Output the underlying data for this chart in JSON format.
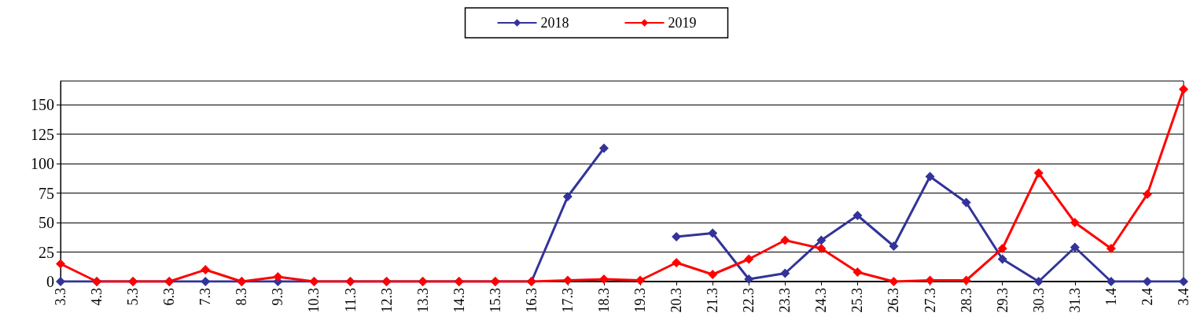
{
  "chart_data": {
    "type": "line",
    "categories": [
      "3.3",
      "4.3",
      "5.3",
      "6.3",
      "7.3",
      "8.3",
      "9.3",
      "10.3",
      "11.3",
      "12.3",
      "13.3",
      "14.3",
      "15.3",
      "16.3",
      "17.3",
      "18.3",
      "19.3",
      "20.3",
      "21.3",
      "22.3",
      "23.3",
      "24.3",
      "25.3",
      "26.3",
      "27.3",
      "28.3",
      "29.3",
      "30.3",
      "31.3",
      "1.4",
      "2.4",
      "3.4"
    ],
    "series": [
      {
        "name": "2018",
        "color": "#333399",
        "values": [
          0,
          0,
          0,
          0,
          0,
          0,
          0,
          0,
          0,
          0,
          0,
          0,
          0,
          0,
          72,
          113,
          null,
          38,
          41,
          2,
          7,
          35,
          56,
          30,
          89,
          67,
          19,
          0,
          29,
          0,
          0,
          0
        ]
      },
      {
        "name": "2019",
        "color": "#ff0000",
        "values": [
          15,
          0,
          0,
          0,
          10,
          0,
          4,
          0,
          0,
          0,
          0,
          0,
          0,
          0,
          1,
          2,
          1,
          16,
          6,
          19,
          35,
          28,
          8,
          0,
          1,
          1,
          28,
          92,
          50,
          28,
          74,
          163
        ]
      }
    ],
    "ylim": [
      0,
      170
    ],
    "yticks": [
      0,
      25,
      50,
      75,
      100,
      125,
      150
    ],
    "grid": "y",
    "legend": "top",
    "marker": "diamond",
    "line_style": "solid"
  }
}
